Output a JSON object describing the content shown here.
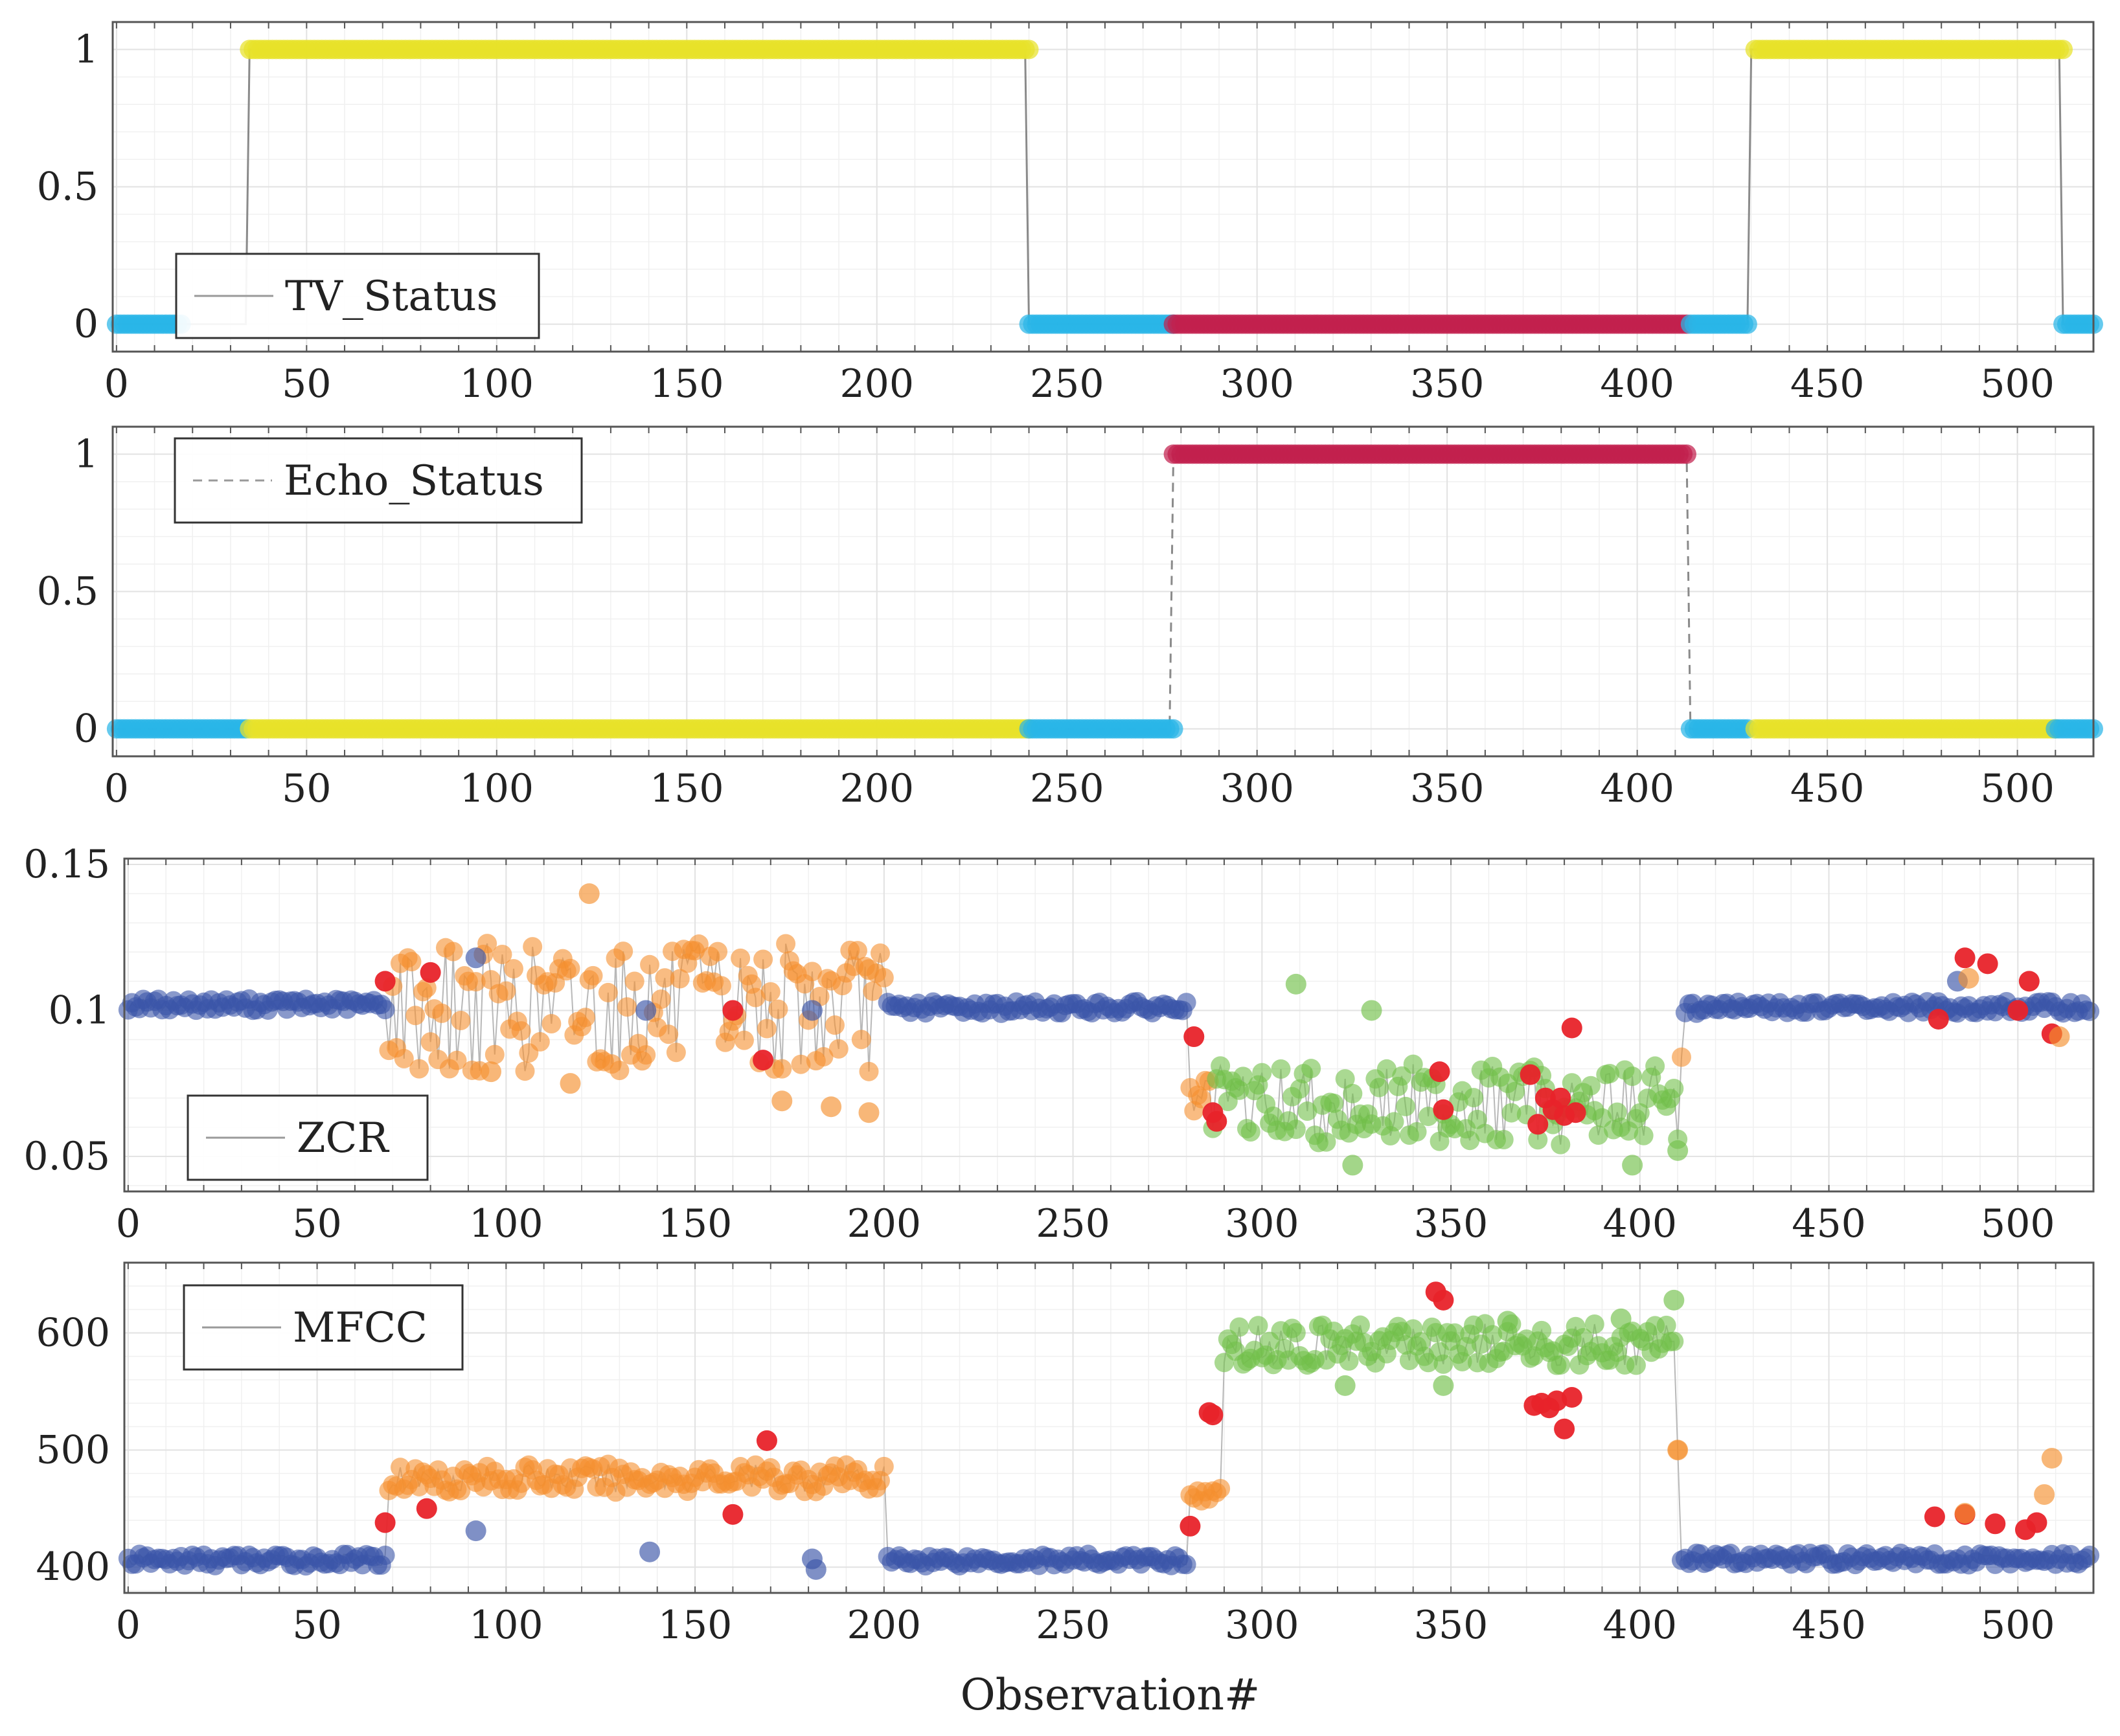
{
  "xlabel": "Observation#",
  "colors": {
    "tv_on": "#e8e22a",
    "idle": "#29b6e8",
    "echo_on": "#c2204e",
    "normal": "#3a55a8",
    "tv_feature": "#f5902f",
    "echo_feature": "#72c04a",
    "anomaly": "#e8232a",
    "frame": "#555555",
    "grid": "#e2e2e2",
    "line": "#8a8a8a"
  },
  "chart_data": [
    {
      "type": "scatter",
      "name": "tv-status",
      "legend": "TV_Status",
      "legend_style": "solid",
      "legend_position": "bottom-left",
      "xlim": [
        -1,
        520
      ],
      "ylim": [
        -0.1,
        1.1
      ],
      "xticks": [
        0,
        50,
        100,
        150,
        200,
        250,
        300,
        350,
        400,
        450,
        500
      ],
      "yticks": [
        0,
        0.5,
        1
      ],
      "ytick_labels": [
        "0",
        "0.5",
        "1"
      ],
      "segments": [
        {
          "from": 0,
          "to": 17,
          "y": 0,
          "color": "idle"
        },
        {
          "from": 35,
          "to": 240,
          "y": 1,
          "color": "tv_on"
        },
        {
          "from": 240,
          "to": 278,
          "y": 0,
          "color": "idle"
        },
        {
          "from": 278,
          "to": 413,
          "y": 0,
          "color": "echo_on"
        },
        {
          "from": 414,
          "to": 429,
          "y": 0,
          "color": "idle"
        },
        {
          "from": 431,
          "to": 512,
          "y": 1,
          "color": "tv_on"
        },
        {
          "from": 512,
          "to": 520,
          "y": 0,
          "color": "idle"
        }
      ],
      "step": [
        [
          0,
          0
        ],
        [
          34,
          0
        ],
        [
          35,
          1
        ],
        [
          239,
          1
        ],
        [
          240,
          0
        ],
        [
          429,
          0
        ],
        [
          430,
          1
        ],
        [
          511,
          1
        ],
        [
          512,
          0
        ],
        [
          520,
          0
        ]
      ]
    },
    {
      "type": "scatter",
      "name": "echo-status",
      "legend": "Echo_Status",
      "legend_style": "dashed",
      "legend_position": "top-left",
      "xlim": [
        -1,
        520
      ],
      "ylim": [
        -0.1,
        1.1
      ],
      "xticks": [
        0,
        50,
        100,
        150,
        200,
        250,
        300,
        350,
        400,
        450,
        500
      ],
      "yticks": [
        0,
        0.5,
        1
      ],
      "ytick_labels": [
        "0",
        "0.5",
        "1"
      ],
      "segments": [
        {
          "from": 0,
          "to": 34,
          "y": 0,
          "color": "idle"
        },
        {
          "from": 35,
          "to": 240,
          "y": 0,
          "color": "tv_on"
        },
        {
          "from": 240,
          "to": 278,
          "y": 0,
          "color": "idle"
        },
        {
          "from": 278,
          "to": 413,
          "y": 1,
          "color": "echo_on"
        },
        {
          "from": 414,
          "to": 429,
          "y": 0,
          "color": "idle"
        },
        {
          "from": 431,
          "to": 510,
          "y": 0,
          "color": "tv_on"
        },
        {
          "from": 510,
          "to": 520,
          "y": 0,
          "color": "idle"
        }
      ],
      "step": [
        [
          0,
          0
        ],
        [
          277,
          0
        ],
        [
          278,
          1
        ],
        [
          413,
          1
        ],
        [
          414,
          0
        ],
        [
          520,
          0
        ]
      ]
    },
    {
      "type": "line",
      "name": "zcr",
      "legend": "ZCR",
      "legend_style": "solid",
      "legend_position": "bottom-left",
      "xlim": [
        -1,
        520
      ],
      "ylim": [
        0.038,
        0.152
      ],
      "xticks": [
        0,
        50,
        100,
        150,
        200,
        250,
        300,
        350,
        400,
        450,
        500
      ],
      "yticks": [
        0.05,
        0.1,
        0.15
      ],
      "ytick_labels": [
        "0.05",
        "0.1",
        "0.15"
      ],
      "regimes": [
        {
          "from": 0,
          "to": 69,
          "color": "normal",
          "base": 0.102,
          "amp": 0.002
        },
        {
          "from": 69,
          "to": 201,
          "color": "tv_feature",
          "base": 0.101,
          "amp": 0.022
        },
        {
          "from": 201,
          "to": 281,
          "color": "normal",
          "base": 0.101,
          "amp": 0.002
        },
        {
          "from": 281,
          "to": 287,
          "color": "tv_feature",
          "base": 0.07,
          "amp": 0.006
        },
        {
          "from": 287,
          "to": 411,
          "color": "echo_feature",
          "base": 0.068,
          "amp": 0.014
        },
        {
          "from": 411,
          "to": 412,
          "color": "tv_feature",
          "base": 0.084,
          "amp": 0.0
        },
        {
          "from": 412,
          "to": 520,
          "color": "normal",
          "base": 0.101,
          "amp": 0.002
        }
      ],
      "points": [
        [
          68,
          0.11,
          "anomaly"
        ],
        [
          80,
          0.113,
          "anomaly"
        ],
        [
          160,
          0.1,
          "anomaly"
        ],
        [
          168,
          0.083,
          "anomaly"
        ],
        [
          282,
          0.091,
          "anomaly"
        ],
        [
          287,
          0.065,
          "anomaly"
        ],
        [
          288,
          0.062,
          "anomaly"
        ],
        [
          347,
          0.079,
          "anomaly"
        ],
        [
          348,
          0.066,
          "anomaly"
        ],
        [
          371,
          0.078,
          "anomaly"
        ],
        [
          373,
          0.061,
          "anomaly"
        ],
        [
          375,
          0.07,
          "anomaly"
        ],
        [
          377,
          0.066,
          "anomaly"
        ],
        [
          379,
          0.07,
          "anomaly"
        ],
        [
          380,
          0.064,
          "anomaly"
        ],
        [
          382,
          0.094,
          "anomaly"
        ],
        [
          383,
          0.065,
          "anomaly"
        ],
        [
          479,
          0.097,
          "anomaly"
        ],
        [
          486,
          0.118,
          "anomaly"
        ],
        [
          492,
          0.116,
          "anomaly"
        ],
        [
          500,
          0.1,
          "anomaly"
        ],
        [
          503,
          0.11,
          "anomaly"
        ],
        [
          509,
          0.092,
          "anomaly"
        ],
        [
          92,
          0.118,
          "normal"
        ],
        [
          137,
          0.1,
          "normal"
        ],
        [
          181,
          0.1,
          "normal"
        ],
        [
          484,
          0.11,
          "normal"
        ],
        [
          96,
          0.079,
          "tv_feature"
        ],
        [
          117,
          0.075,
          "tv_feature"
        ],
        [
          122,
          0.14,
          "tv_feature"
        ],
        [
          173,
          0.069,
          "tv_feature"
        ],
        [
          186,
          0.067,
          "tv_feature"
        ],
        [
          196,
          0.065,
          "tv_feature"
        ],
        [
          196,
          0.114,
          "tv_feature"
        ],
        [
          487,
          0.111,
          "tv_feature"
        ],
        [
          511,
          0.091,
          "tv_feature"
        ],
        [
          309,
          0.109,
          "echo_feature"
        ],
        [
          329,
          0.1,
          "echo_feature"
        ],
        [
          324,
          0.047,
          "echo_feature"
        ],
        [
          398,
          0.047,
          "echo_feature"
        ],
        [
          410,
          0.052,
          "echo_feature"
        ]
      ]
    },
    {
      "type": "line",
      "name": "mfcc",
      "legend": "MFCC",
      "legend_style": "solid",
      "legend_position": "top-left",
      "xlim": [
        -1,
        520
      ],
      "ylim": [
        378,
        660
      ],
      "xticks": [
        0,
        50,
        100,
        150,
        200,
        250,
        300,
        350,
        400,
        450,
        500
      ],
      "yticks": [
        400,
        500,
        600
      ],
      "ytick_labels": [
        "400",
        "500",
        "600"
      ],
      "regimes": [
        {
          "from": 0,
          "to": 69,
          "color": "normal",
          "base": 406,
          "amp": 5
        },
        {
          "from": 69,
          "to": 201,
          "color": "tv_feature",
          "base": 476,
          "amp": 12
        },
        {
          "from": 201,
          "to": 281,
          "color": "normal",
          "base": 406,
          "amp": 5
        },
        {
          "from": 281,
          "to": 290,
          "color": "tv_feature",
          "base": 460,
          "amp": 8
        },
        {
          "from": 290,
          "to": 410,
          "color": "echo_feature",
          "base": 590,
          "amp": 18
        },
        {
          "from": 410,
          "to": 411,
          "color": "tv_feature",
          "base": 500,
          "amp": 0
        },
        {
          "from": 411,
          "to": 520,
          "color": "normal",
          "base": 407,
          "amp": 5
        }
      ],
      "points": [
        [
          68,
          438,
          "anomaly"
        ],
        [
          79,
          450,
          "anomaly"
        ],
        [
          160,
          445,
          "anomaly"
        ],
        [
          169,
          508,
          "anomaly"
        ],
        [
          281,
          435,
          "anomaly"
        ],
        [
          286,
          532,
          "anomaly"
        ],
        [
          287,
          530,
          "anomaly"
        ],
        [
          346,
          635,
          "anomaly"
        ],
        [
          348,
          628,
          "anomaly"
        ],
        [
          372,
          538,
          "anomaly"
        ],
        [
          374,
          540,
          "anomaly"
        ],
        [
          376,
          536,
          "anomaly"
        ],
        [
          378,
          542,
          "anomaly"
        ],
        [
          380,
          518,
          "anomaly"
        ],
        [
          382,
          545,
          "anomaly"
        ],
        [
          478,
          443,
          "anomaly"
        ],
        [
          486,
          445,
          "anomaly"
        ],
        [
          494,
          437,
          "anomaly"
        ],
        [
          502,
          432,
          "anomaly"
        ],
        [
          505,
          438,
          "anomaly"
        ],
        [
          92,
          431,
          "normal"
        ],
        [
          138,
          413,
          "normal"
        ],
        [
          181,
          407,
          "normal"
        ],
        [
          182,
          398,
          "normal"
        ],
        [
          486,
          446,
          "tv_feature"
        ],
        [
          507,
          462,
          "tv_feature"
        ],
        [
          509,
          493,
          "tv_feature"
        ],
        [
          410,
          500,
          "tv_feature"
        ],
        [
          322,
          555,
          "echo_feature"
        ],
        [
          348,
          555,
          "echo_feature"
        ],
        [
          365,
          610,
          "echo_feature"
        ],
        [
          395,
          612,
          "echo_feature"
        ],
        [
          409,
          628,
          "echo_feature"
        ]
      ]
    }
  ]
}
